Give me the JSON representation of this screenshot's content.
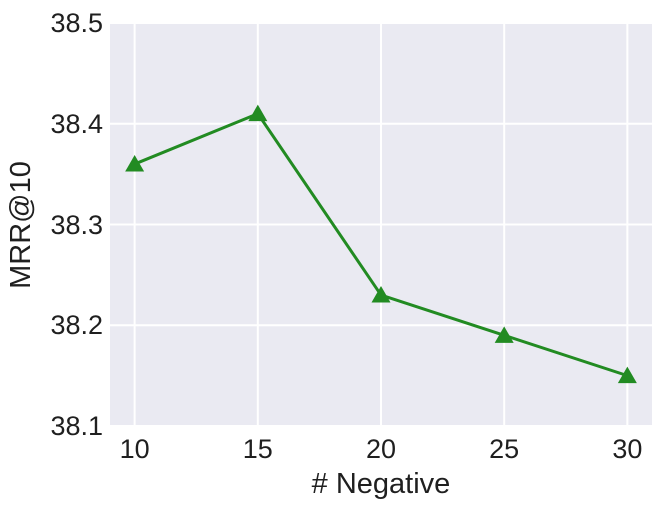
{
  "chart_data": {
    "type": "line",
    "title": "",
    "xlabel": "# Negative",
    "ylabel": "MRR@10",
    "x": [
      10,
      15,
      20,
      25,
      30
    ],
    "series": [
      {
        "name": "MRR@10",
        "values": [
          38.36,
          38.41,
          38.23,
          38.19,
          38.15
        ]
      }
    ],
    "xtick_labels": [
      "10",
      "15",
      "20",
      "25",
      "30"
    ],
    "ytick_labels": [
      "38.1",
      "38.2",
      "38.3",
      "38.4",
      "38.5"
    ],
    "ytick_values": [
      38.1,
      38.2,
      38.3,
      38.4,
      38.5
    ],
    "xlim": [
      9,
      31
    ],
    "ylim": [
      38.1,
      38.5
    ],
    "grid": true,
    "legend_visible": false,
    "marker": "triangle-up",
    "colors": {
      "line": "#228B22",
      "plot_background": "#EAEAF2",
      "grid": "#FFFFFF",
      "text": "#1F1F1F",
      "figure_background": "#FFFFFF"
    }
  }
}
